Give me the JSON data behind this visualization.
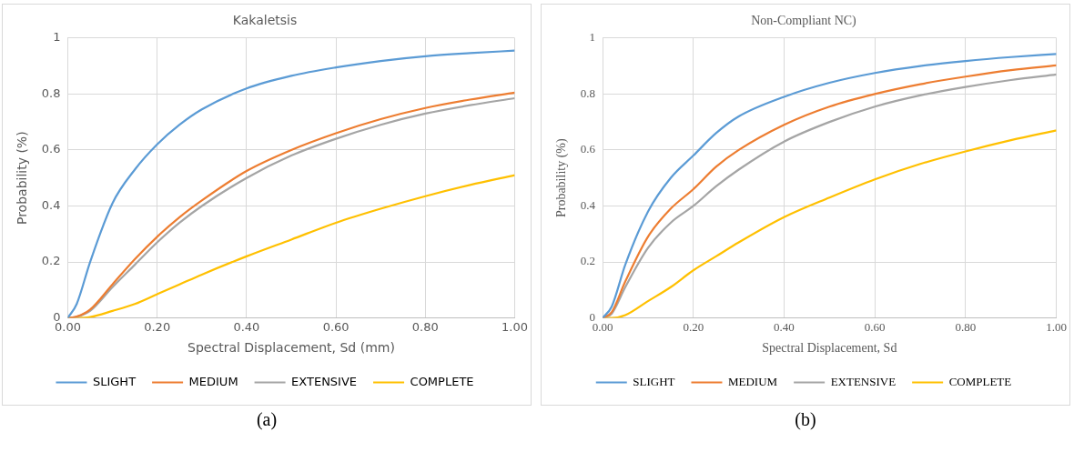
{
  "chart_data": [
    {
      "type": "line",
      "title": "Kakaletsis",
      "xlabel": "Spectral Displacement, Sd (mm)",
      "ylabel": "Probability (%)",
      "annotations": [
        "(a)"
      ],
      "x": [
        0,
        0.02,
        0.05,
        0.1,
        0.15,
        0.2,
        0.25,
        0.3,
        0.4,
        0.5,
        0.6,
        0.7,
        0.8,
        0.9,
        1.0
      ],
      "series": [
        {
          "name": "SLIGHT",
          "color": "#5b9bd5",
          "values": [
            0,
            0.05,
            0.2,
            0.41,
            0.53,
            0.62,
            0.69,
            0.745,
            0.82,
            0.865,
            0.895,
            0.918,
            0.935,
            0.946,
            0.955
          ]
        },
        {
          "name": "MEDIUM",
          "color": "#ed7d31",
          "values": [
            0,
            0.005,
            0.03,
            0.12,
            0.21,
            0.29,
            0.36,
            0.42,
            0.525,
            0.6,
            0.66,
            0.71,
            0.75,
            0.78,
            0.805
          ]
        },
        {
          "name": "EXTENSIVE",
          "color": "#a5a5a5",
          "values": [
            0,
            0.004,
            0.025,
            0.11,
            0.19,
            0.27,
            0.34,
            0.4,
            0.5,
            0.58,
            0.64,
            0.69,
            0.73,
            0.76,
            0.785
          ]
        },
        {
          "name": "COMPLETE",
          "color": "#ffc000",
          "values": [
            0,
            0,
            0.003,
            0.025,
            0.05,
            0.085,
            0.12,
            0.155,
            0.22,
            0.28,
            0.34,
            0.39,
            0.435,
            0.475,
            0.51
          ]
        }
      ],
      "xlim": [
        0,
        1
      ],
      "xticks": [
        {
          "value": 0,
          "label": "0.00"
        },
        {
          "value": 0.2,
          "label": "0.20"
        },
        {
          "value": 0.4,
          "label": "0.40"
        },
        {
          "value": 0.6,
          "label": "0.60"
        },
        {
          "value": 0.8,
          "label": "0.80"
        },
        {
          "value": 1,
          "label": "1.00"
        }
      ],
      "ylim": [
        0,
        1
      ],
      "yticks": [
        0,
        0.2,
        0.4,
        0.6,
        0.8,
        1
      ],
      "grid": true,
      "legend": "bottom",
      "marker": "none",
      "line_style": "solid"
    },
    {
      "type": "line",
      "title": "Non-Compliant NC)",
      "xlabel": "Spectral Displacement, Sd",
      "ylabel": "Probability (%)",
      "annotations": [
        "(b)"
      ],
      "x": [
        0,
        0.02,
        0.05,
        0.1,
        0.15,
        0.2,
        0.25,
        0.3,
        0.4,
        0.5,
        0.6,
        0.7,
        0.8,
        0.9,
        1.0
      ],
      "series": [
        {
          "name": "SLIGHT",
          "color": "#5b9bd5",
          "values": [
            0,
            0.04,
            0.19,
            0.38,
            0.5,
            0.58,
            0.66,
            0.72,
            0.79,
            0.84,
            0.875,
            0.9,
            0.918,
            0.932,
            0.943
          ]
        },
        {
          "name": "MEDIUM",
          "color": "#ed7d31",
          "values": [
            0,
            0.02,
            0.13,
            0.29,
            0.39,
            0.46,
            0.54,
            0.6,
            0.69,
            0.755,
            0.8,
            0.835,
            0.862,
            0.885,
            0.902
          ]
        },
        {
          "name": "EXTENSIVE",
          "color": "#a5a5a5",
          "values": [
            0,
            0.015,
            0.11,
            0.25,
            0.34,
            0.4,
            0.47,
            0.53,
            0.63,
            0.7,
            0.755,
            0.795,
            0.825,
            0.85,
            0.87
          ]
        },
        {
          "name": "COMPLETE",
          "color": "#ffc000",
          "values": [
            0,
            0,
            0.01,
            0.06,
            0.11,
            0.17,
            0.22,
            0.27,
            0.36,
            0.43,
            0.495,
            0.55,
            0.595,
            0.635,
            0.67
          ]
        }
      ],
      "xlim": [
        0,
        1
      ],
      "xticks": [
        {
          "value": 0,
          "label": "0.00"
        },
        {
          "value": 0.2,
          "label": "0.20"
        },
        {
          "value": 0.4,
          "label": "0.40"
        },
        {
          "value": 0.6,
          "label": "0.60"
        },
        {
          "value": 0.8,
          "label": "0.80"
        },
        {
          "value": 1,
          "label": "1.00"
        }
      ],
      "ylim": [
        0,
        1
      ],
      "yticks": [
        0,
        0.2,
        0.4,
        0.6,
        0.8,
        1
      ],
      "grid": true,
      "legend": "bottom",
      "marker": "none",
      "line_style": "solid"
    }
  ]
}
